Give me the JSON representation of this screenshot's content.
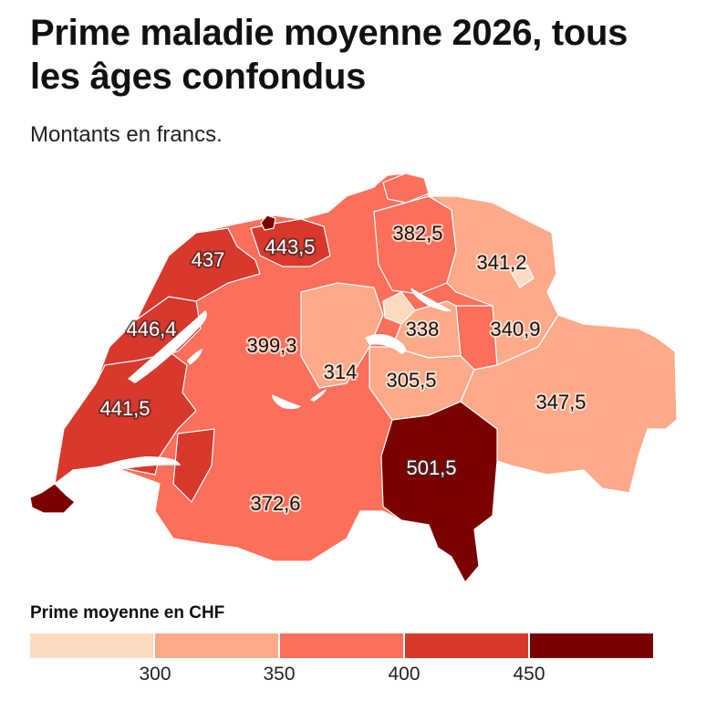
{
  "header": {
    "title": "Prime maladie moyenne 2026, tous les âges confondus",
    "subtitle": "Montants en francs."
  },
  "map": {
    "labels": [
      "437",
      "443,5",
      "446,4",
      "441,5",
      "399,3",
      "372,6",
      "314",
      "305,5",
      "338",
      "382,5",
      "341,2",
      "340,9",
      "347,5",
      "501,5"
    ]
  },
  "legend": {
    "title": "Prime moyenne en CHF",
    "colors": [
      "#fddbc0",
      "#fcaa8a",
      "#fb6f5b",
      "#d9382c",
      "#7b0000"
    ],
    "ticks": [
      "300",
      "350",
      "400",
      "450"
    ]
  }
}
